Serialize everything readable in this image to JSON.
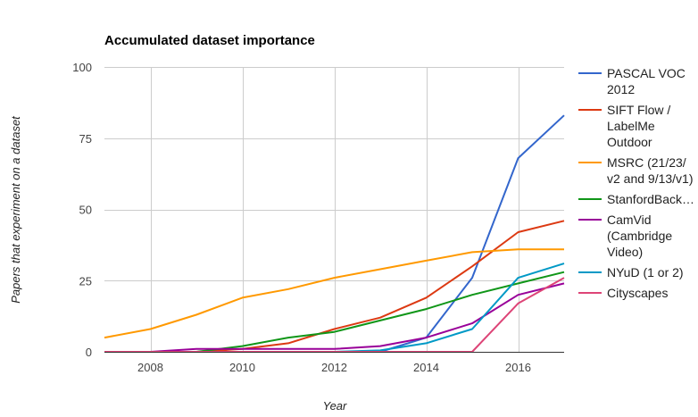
{
  "chart_data": {
    "type": "line",
    "title": "Accumulated dataset importance",
    "xlabel": "Year",
    "ylabel": "Papers that experiment on a dataset",
    "xlim": [
      2007,
      2017
    ],
    "ylim": [
      0,
      100
    ],
    "xticks": [
      2008,
      2010,
      2012,
      2014,
      2016
    ],
    "yticks": [
      0,
      25,
      50,
      75,
      100
    ],
    "grid": true,
    "legend_position": "right",
    "x": [
      2007,
      2008,
      2009,
      2010,
      2011,
      2012,
      2013,
      2014,
      2015,
      2016,
      2017
    ],
    "series": [
      {
        "name": "PASCAL VOC 2012",
        "legend_lines": [
          "PASCAL VOC",
          "2012"
        ],
        "color": "#3366cc",
        "values": [
          0,
          0,
          0,
          0,
          0,
          0,
          0,
          5,
          26,
          68,
          83
        ]
      },
      {
        "name": "SIFT Flow / LabelMe Outdoor",
        "legend_lines": [
          "SIFT Flow /",
          "LabelMe",
          "Outdoor"
        ],
        "color": "#dc3912",
        "values": [
          0,
          0,
          0,
          1,
          3,
          8,
          12,
          19,
          30,
          42,
          46
        ]
      },
      {
        "name": "MSRC (21/23/ v2 and 9/13/v1)",
        "legend_lines": [
          "MSRC (21/23/",
          "v2 and 9/13/v1)"
        ],
        "color": "#ff9900",
        "values": [
          5,
          8,
          13,
          19,
          22,
          26,
          29,
          32,
          35,
          36,
          36
        ]
      },
      {
        "name": "StanfordBack…",
        "legend_lines": [
          "StanfordBack…"
        ],
        "color": "#109618",
        "values": [
          0,
          0,
          0,
          2,
          5,
          7,
          11,
          15,
          20,
          24,
          28
        ]
      },
      {
        "name": "CamVid (Cambridge Video)",
        "legend_lines": [
          "CamVid",
          "(Cambridge",
          "Video)"
        ],
        "color": "#990099",
        "values": [
          0,
          0,
          1,
          1,
          1,
          1,
          2,
          5,
          10,
          20,
          24
        ]
      },
      {
        "name": "NYuD (1 or 2)",
        "legend_lines": [
          "NYuD (1 or 2)"
        ],
        "color": "#0099c6",
        "values": [
          0,
          0,
          0,
          0,
          0,
          0,
          0.5,
          3,
          8,
          26,
          31
        ]
      },
      {
        "name": "Cityscapes",
        "legend_lines": [
          "Cityscapes"
        ],
        "color": "#dd4477",
        "values": [
          0,
          0,
          0,
          0,
          0,
          0,
          0,
          0,
          0,
          17,
          26
        ]
      }
    ]
  }
}
